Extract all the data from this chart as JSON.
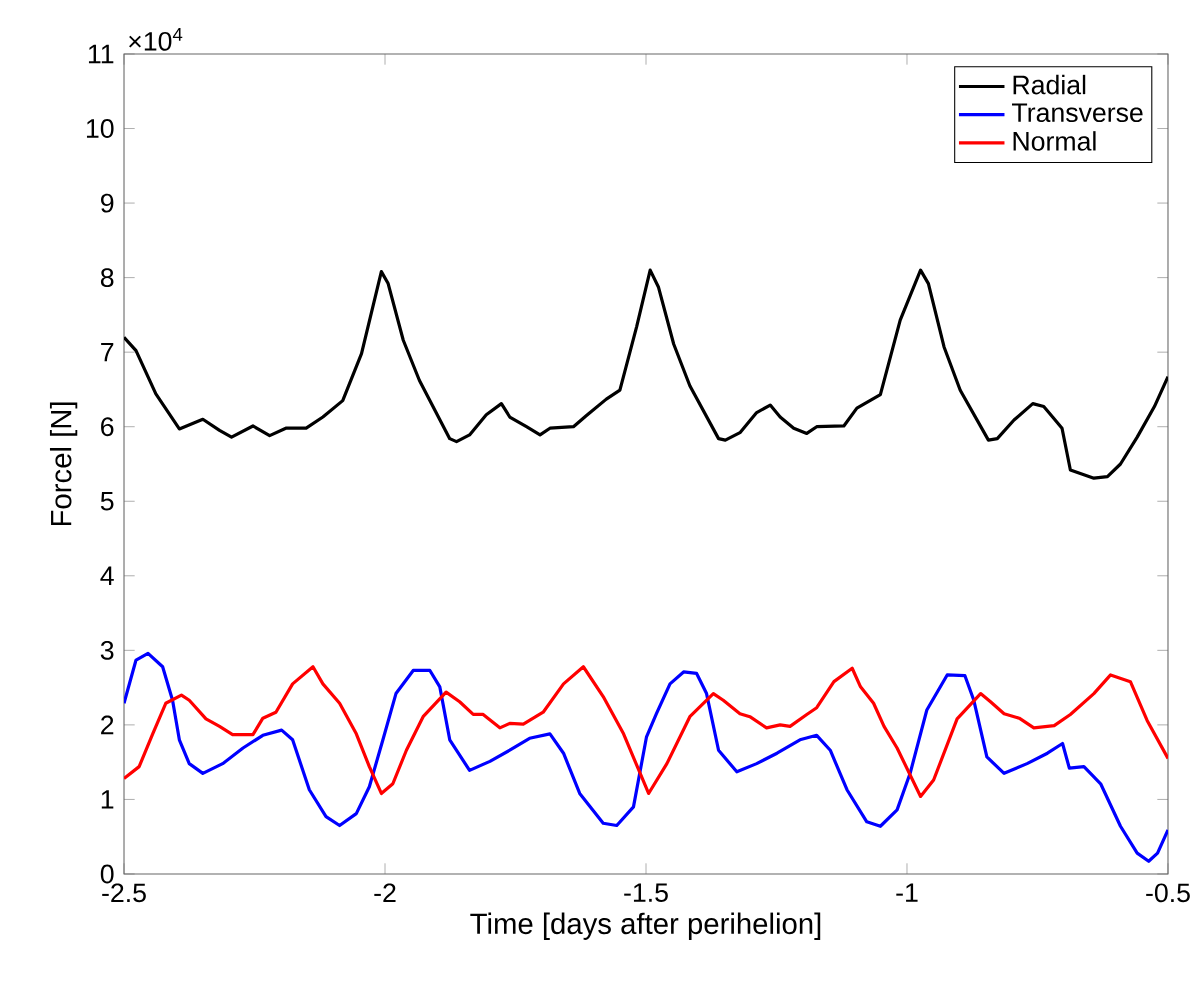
{
  "chart_data": {
    "type": "line",
    "xlabel": "Time [days after perihelion]",
    "ylabel": "Forcel [N]",
    "annotations": [
      "×10$^{4}$"
    ],
    "xlim": [
      -2.5,
      -0.5
    ],
    "ylim": [
      0,
      11
    ],
    "xticks": [
      -2.5,
      -2,
      -1.5,
      -1,
      -0.5
    ],
    "yticks": [
      0,
      1,
      2,
      3,
      4,
      5,
      6,
      7,
      8,
      9,
      10,
      11
    ],
    "legend": "top right",
    "grid": false,
    "marker": "none",
    "line_style": "solid",
    "series": [
      {
        "name": "Radial",
        "color": "#000000",
        "x": [
          -2.5,
          -2.477,
          -2.439,
          -2.394,
          -2.349,
          -2.317,
          -2.294,
          -2.253,
          -2.221,
          -2.19,
          -2.151,
          -2.119,
          -2.081,
          -2.045,
          -2.007,
          -1.994,
          -1.965,
          -1.934,
          -1.876,
          -1.863,
          -1.838,
          -1.806,
          -1.777,
          -1.761,
          -1.729,
          -1.703,
          -1.684,
          -1.639,
          -1.614,
          -1.576,
          -1.55,
          -1.518,
          -1.492,
          -1.476,
          -1.447,
          -1.416,
          -1.361,
          -1.348,
          -1.32,
          -1.288,
          -1.262,
          -1.243,
          -1.217,
          -1.192,
          -1.173,
          -1.121,
          -1.096,
          -1.051,
          -1.013,
          -0.974,
          -0.959,
          -0.929,
          -0.898,
          -0.844,
          -0.827,
          -0.795,
          -0.759,
          -0.738,
          -0.721,
          -0.703,
          -0.687,
          -0.642,
          -0.616,
          -0.591,
          -0.559,
          -0.526,
          -0.5
        ],
        "values": [
          7.2,
          7.02,
          6.44,
          5.97,
          6.1,
          5.95,
          5.86,
          6.01,
          5.88,
          5.98,
          5.98,
          6.13,
          6.35,
          6.98,
          8.08,
          7.92,
          7.16,
          6.62,
          5.84,
          5.8,
          5.89,
          6.16,
          6.31,
          6.13,
          6.0,
          5.89,
          5.98,
          6.0,
          6.15,
          6.37,
          6.49,
          7.34,
          8.1,
          7.87,
          7.11,
          6.55,
          5.84,
          5.82,
          5.92,
          6.19,
          6.29,
          6.13,
          5.98,
          5.91,
          6.0,
          6.01,
          6.25,
          6.43,
          7.43,
          8.1,
          7.92,
          7.07,
          6.49,
          5.82,
          5.84,
          6.09,
          6.31,
          6.27,
          6.13,
          5.98,
          5.42,
          5.31,
          5.33,
          5.5,
          5.86,
          6.27,
          6.67
        ]
      },
      {
        "name": "Transverse",
        "color": "#0000ff",
        "x": [
          -2.5,
          -2.477,
          -2.454,
          -2.426,
          -2.407,
          -2.394,
          -2.375,
          -2.349,
          -2.311,
          -2.272,
          -2.234,
          -2.198,
          -2.177,
          -2.145,
          -2.113,
          -2.087,
          -2.055,
          -2.03,
          -2.004,
          -1.979,
          -1.946,
          -1.914,
          -1.895,
          -1.876,
          -1.838,
          -1.799,
          -1.761,
          -1.723,
          -1.684,
          -1.658,
          -1.627,
          -1.582,
          -1.556,
          -1.524,
          -1.499,
          -1.48,
          -1.454,
          -1.428,
          -1.403,
          -1.384,
          -1.361,
          -1.326,
          -1.288,
          -1.249,
          -1.205,
          -1.173,
          -1.147,
          -1.115,
          -1.077,
          -1.051,
          -1.019,
          -0.994,
          -0.962,
          -0.923,
          -0.889,
          -0.872,
          -0.847,
          -0.814,
          -0.77,
          -0.731,
          -0.702,
          -0.689,
          -0.661,
          -0.629,
          -0.591,
          -0.559,
          -0.537,
          -0.52,
          -0.5
        ],
        "values": [
          2.29,
          2.87,
          2.96,
          2.78,
          2.33,
          1.8,
          1.48,
          1.35,
          1.48,
          1.69,
          1.86,
          1.93,
          1.8,
          1.13,
          0.77,
          0.65,
          0.81,
          1.17,
          1.8,
          2.42,
          2.73,
          2.73,
          2.51,
          1.8,
          1.39,
          1.51,
          1.66,
          1.82,
          1.88,
          1.62,
          1.08,
          0.68,
          0.65,
          0.9,
          1.84,
          2.15,
          2.55,
          2.71,
          2.69,
          2.42,
          1.66,
          1.37,
          1.48,
          1.62,
          1.8,
          1.86,
          1.66,
          1.13,
          0.7,
          0.64,
          0.86,
          1.35,
          2.2,
          2.67,
          2.66,
          2.33,
          1.57,
          1.35,
          1.48,
          1.62,
          1.75,
          1.42,
          1.44,
          1.21,
          0.64,
          0.28,
          0.17,
          0.28,
          0.59
        ]
      },
      {
        "name": "Normal",
        "color": "#ff0000",
        "x": [
          -2.5,
          -2.471,
          -2.445,
          -2.42,
          -2.39,
          -2.375,
          -2.343,
          -2.317,
          -2.292,
          -2.253,
          -2.234,
          -2.209,
          -2.177,
          -2.138,
          -2.119,
          -2.087,
          -2.055,
          -2.03,
          -2.007,
          -1.985,
          -1.959,
          -1.927,
          -1.883,
          -1.857,
          -1.831,
          -1.812,
          -1.78,
          -1.761,
          -1.735,
          -1.697,
          -1.658,
          -1.62,
          -1.582,
          -1.543,
          -1.495,
          -1.46,
          -1.416,
          -1.371,
          -1.352,
          -1.32,
          -1.301,
          -1.269,
          -1.243,
          -1.224,
          -1.192,
          -1.173,
          -1.14,
          -1.105,
          -1.089,
          -1.064,
          -1.044,
          -1.019,
          -0.974,
          -0.949,
          -0.904,
          -0.859,
          -0.84,
          -0.814,
          -0.785,
          -0.757,
          -0.718,
          -0.687,
          -0.642,
          -0.61,
          -0.572,
          -0.54,
          -0.5
        ],
        "values": [
          1.28,
          1.44,
          1.88,
          2.29,
          2.4,
          2.33,
          2.08,
          1.98,
          1.87,
          1.87,
          2.09,
          2.17,
          2.55,
          2.78,
          2.55,
          2.29,
          1.88,
          1.44,
          1.08,
          1.21,
          1.66,
          2.11,
          2.44,
          2.31,
          2.14,
          2.14,
          1.96,
          2.02,
          2.01,
          2.17,
          2.55,
          2.78,
          2.38,
          1.88,
          1.08,
          1.48,
          2.11,
          2.42,
          2.33,
          2.15,
          2.11,
          1.96,
          2.0,
          1.98,
          2.14,
          2.23,
          2.58,
          2.76,
          2.51,
          2.29,
          1.98,
          1.69,
          1.04,
          1.26,
          2.08,
          2.42,
          2.31,
          2.15,
          2.09,
          1.96,
          1.99,
          2.14,
          2.42,
          2.67,
          2.58,
          2.06,
          1.55
        ]
      }
    ]
  }
}
